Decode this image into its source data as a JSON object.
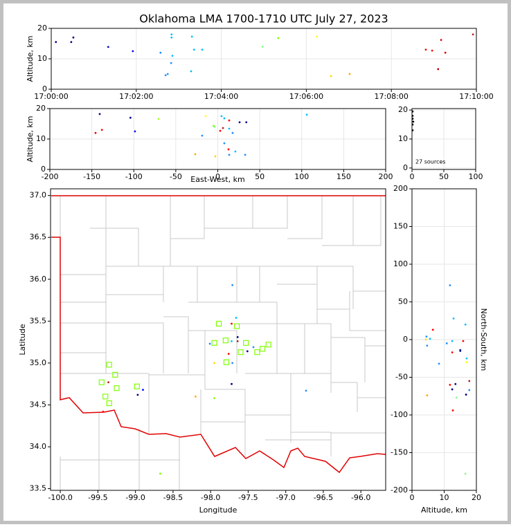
{
  "title": "Oklahoma LMA 1700-1710 UTC July 27, 2023",
  "chart_data": [
    {
      "type": "scatter",
      "y_label": "Altitude, km",
      "grid": true,
      "xlim": [
        0,
        10
      ],
      "ylim": [
        0,
        20
      ],
      "xticks": [
        {
          "value": 0,
          "label": "17:00:00"
        },
        {
          "value": 2,
          "label": "17:02:00"
        },
        {
          "value": 4,
          "label": "17:04:00"
        },
        {
          "value": 6,
          "label": "17:06:00"
        },
        {
          "value": 8,
          "label": "17:08:00"
        },
        {
          "value": 10,
          "label": "17:10:00"
        }
      ],
      "yticks": [
        0,
        10,
        20
      ],
      "series": [
        {
          "marker": "dot",
          "x": [
            0.11,
            0.47,
            0.52,
            1.34,
            1.92,
            2.57,
            2.83,
            2.83,
            2.85,
            2.82,
            2.74,
            2.69,
            3.29,
            3.31,
            3.36,
            3.55,
            4.97,
            5.34,
            6.25,
            6.58,
            7.02,
            8.81,
            8.96,
            9.17,
            9.27,
            9.1,
            9.92
          ],
          "values": [
            15.5,
            15.5,
            17,
            13.9,
            12.5,
            12,
            18,
            17,
            11,
            8.6,
            5,
            4.6,
            5.9,
            17.3,
            13,
            13,
            14,
            16.8,
            17.3,
            4.3,
            5,
            13,
            12.7,
            16.2,
            12,
            6.6,
            18
          ],
          "colors": [
            "#00008b",
            "#00008b",
            "#00008b",
            "#0000cd",
            "#0000ff",
            "#1e90ff",
            "#00bfff",
            "#00bfff",
            "#00bfff",
            "#1e90ff",
            "#1e90ff",
            "#1e90ff",
            "#00bfff",
            "#00bfff",
            "#00bfff",
            "#00bfff",
            "#7fff7f",
            "#7fff00",
            "#ffff00",
            "#ffd700",
            "#ffa500",
            "#ff0000",
            "#ff0000",
            "#e00000",
            "#e00000",
            "#c00000",
            "#b22222"
          ]
        }
      ]
    },
    {
      "type": "scatter",
      "x_label": "East-West, km",
      "y_label": "Altitude, km",
      "grid": true,
      "xlim": [
        -200,
        200
      ],
      "ylim": [
        0,
        20
      ],
      "xticks": [
        -200,
        -150,
        -100,
        -50,
        0,
        50,
        100,
        150,
        200
      ],
      "yticks": [
        0,
        10,
        20
      ],
      "series": [
        {
          "marker": "dot",
          "x": [
            -140.6,
            -145.6,
            -138,
            -104,
            -98.6,
            -70.5,
            -18.6,
            -14.4,
            -26.8,
            -2.9,
            -3.7,
            4.5,
            7.8,
            2.9,
            6.2,
            13.6,
            13.6,
            17.7,
            7.8,
            12.8,
            13.6,
            21,
            26,
            34,
            32.6,
            106,
            -5
          ],
          "values": [
            18.2,
            12,
            13,
            17,
            12.5,
            16.6,
            11.1,
            17.5,
            5,
            4.3,
            14,
            17.5,
            16.8,
            12.7,
            13.6,
            16.1,
            13.4,
            12,
            8.6,
            6.6,
            4.8,
            5.9,
            15.5,
            15.5,
            4.8,
            18,
            14.3
          ],
          "colors": [
            "#00008b",
            "#ff0000",
            "#ff0000",
            "#00008b",
            "#0000ff",
            "#adff2f",
            "#1e90ff",
            "#ffff00",
            "#ffa500",
            "#ffd700",
            "#7fff7f",
            "#00bfff",
            "#00bfff",
            "#ff0000",
            "#b22222",
            "#ff0000",
            "#00bfff",
            "#1e90ff",
            "#1e90ff",
            "#ff0000",
            "#1e90ff",
            "#00bfff",
            "#00008b",
            "#00008b",
            "#1e90ff",
            "#00bfff",
            "#7fff00"
          ]
        }
      ]
    },
    {
      "type": "scatter",
      "annotation": "27 sources",
      "grid": true,
      "xlim": [
        0,
        100
      ],
      "ylim": [
        -0.5,
        20.5
      ],
      "xticks": [
        0,
        50,
        100
      ],
      "yticks": [
        0,
        10,
        20
      ],
      "series": [
        {
          "marker": "dot",
          "color": "#000000",
          "x": [
            1,
            1,
            2,
            1,
            1,
            1
          ],
          "values": [
            13,
            15,
            16,
            17,
            18,
            19.5
          ]
        }
      ]
    },
    {
      "type": "map",
      "x_label": "Longitude",
      "y_label": "Latitude",
      "grid": false,
      "xlim": [
        -100.13,
        -95.67
      ],
      "ylim": [
        33.48,
        37.08
      ],
      "xticks": [
        {
          "value": -100,
          "label": "-100.0"
        },
        {
          "value": -99.5,
          "label": "-99.5"
        },
        {
          "value": -99,
          "label": "-99.0"
        },
        {
          "value": -98.5,
          "label": "-98.5"
        },
        {
          "value": -98,
          "label": "-98.0"
        },
        {
          "value": -97.5,
          "label": "-97.5"
        },
        {
          "value": -97,
          "label": "-97.0"
        },
        {
          "value": -96.5,
          "label": "-96.5"
        },
        {
          "value": -96,
          "label": "-96.0"
        }
      ],
      "yticks": [
        {
          "value": 33.5,
          "label": "33.5"
        },
        {
          "value": 34,
          "label": "34.0"
        },
        {
          "value": 34.5,
          "label": "34.5"
        },
        {
          "value": 35,
          "label": "35.0"
        },
        {
          "value": 35.5,
          "label": "35.5"
        },
        {
          "value": 36,
          "label": "36.0"
        },
        {
          "value": 36.5,
          "label": "36.5"
        },
        {
          "value": 37,
          "label": "37.0"
        }
      ],
      "series": [
        {
          "marker": "dot",
          "x": [
            -97.71,
            -97.66,
            -97.72,
            -98.01,
            -97.72,
            -97.64,
            -97.64,
            -97.71,
            -97.95,
            -97.76,
            -97.51,
            -97.43,
            -97.72,
            -99.36,
            -98.9,
            -98.97,
            -98.2,
            -97.95,
            -96.73,
            -98.67,
            -99.43
          ],
          "values": [
            35.93,
            35.54,
            35.47,
            35.23,
            35.26,
            35.26,
            35.31,
            35.0,
            35.0,
            35.11,
            35.14,
            35.19,
            34.75,
            34.77,
            34.68,
            34.62,
            34.6,
            34.58,
            34.67,
            33.68,
            34.42
          ],
          "colors": [
            "#1e90ff",
            "#00bfff",
            "#ff0000",
            "#1e90ff",
            "#00bfff",
            "#b22222",
            "#00008b",
            "#1e90ff",
            "#ffd700",
            "#ff0000",
            "#00008b",
            "#1e90ff",
            "#00008b",
            "#b22222",
            "#0000ff",
            "#00008b",
            "#ffa500",
            "#7fff00",
            "#1e90ff",
            "#7fff00",
            "#ff0000"
          ]
        },
        {
          "marker": "square",
          "color": "#7fff00",
          "x": [
            -97.89,
            -97.65,
            -97.95,
            -97.8,
            -97.53,
            -97.23,
            -97.6,
            -97.38,
            -97.31,
            -97.79,
            -99.35,
            -99.27,
            -99.45,
            -99.25,
            -98.98,
            -99.4,
            -99.35
          ],
          "values": [
            35.47,
            35.44,
            35.24,
            35.27,
            35.24,
            35.22,
            35.13,
            35.13,
            35.17,
            35.01,
            34.98,
            34.86,
            34.77,
            34.7,
            34.72,
            34.6,
            34.52
          ]
        }
      ]
    },
    {
      "type": "scatter",
      "x_label": "Altitude, km",
      "y_label": "North-South, km",
      "grid": true,
      "xlim": [
        0,
        20
      ],
      "ylim": [
        -200,
        200
      ],
      "xticks": [
        0,
        10,
        20
      ],
      "yticks": [
        -200,
        -150,
        -100,
        -50,
        0,
        50,
        100,
        150,
        200
      ],
      "series": [
        {
          "marker": "dot",
          "x": [
            11.8,
            12.9,
            16.6,
            6.5,
            4.3,
            4.5,
            5.6,
            4.7,
            10.8,
            12.5,
            15.9,
            15,
            15,
            12.5,
            17,
            17,
            8.4,
            17.8,
            11.8,
            13.5,
            12.5,
            17.8,
            16.8,
            4.7,
            13.8,
            12.7,
            16.6
          ],
          "values": [
            72,
            28,
            20,
            13,
            0,
            4,
            1,
            -8,
            -5,
            -2,
            -2,
            -14,
            -15,
            -17,
            -25,
            -30,
            -32,
            -55,
            -60,
            -59,
            -66,
            -67,
            -73,
            -74,
            -77,
            -94,
            -178
          ],
          "colors": [
            "#1e90ff",
            "#00bfff",
            "#00bfff",
            "#ff0000",
            "#ffd700",
            "#1e90ff",
            "#00bfff",
            "#1e90ff",
            "#1e90ff",
            "#00bfff",
            "#ff0000",
            "#00008b",
            "#00008b",
            "#ff0000",
            "#00bfff",
            "#ffff00",
            "#1e90ff",
            "#b22222",
            "#ff0000",
            "#00008b",
            "#00008b",
            "#1e90ff",
            "#00008b",
            "#ffa500",
            "#7fff7f",
            "#ff0000",
            "#7fff7f"
          ]
        }
      ]
    }
  ]
}
